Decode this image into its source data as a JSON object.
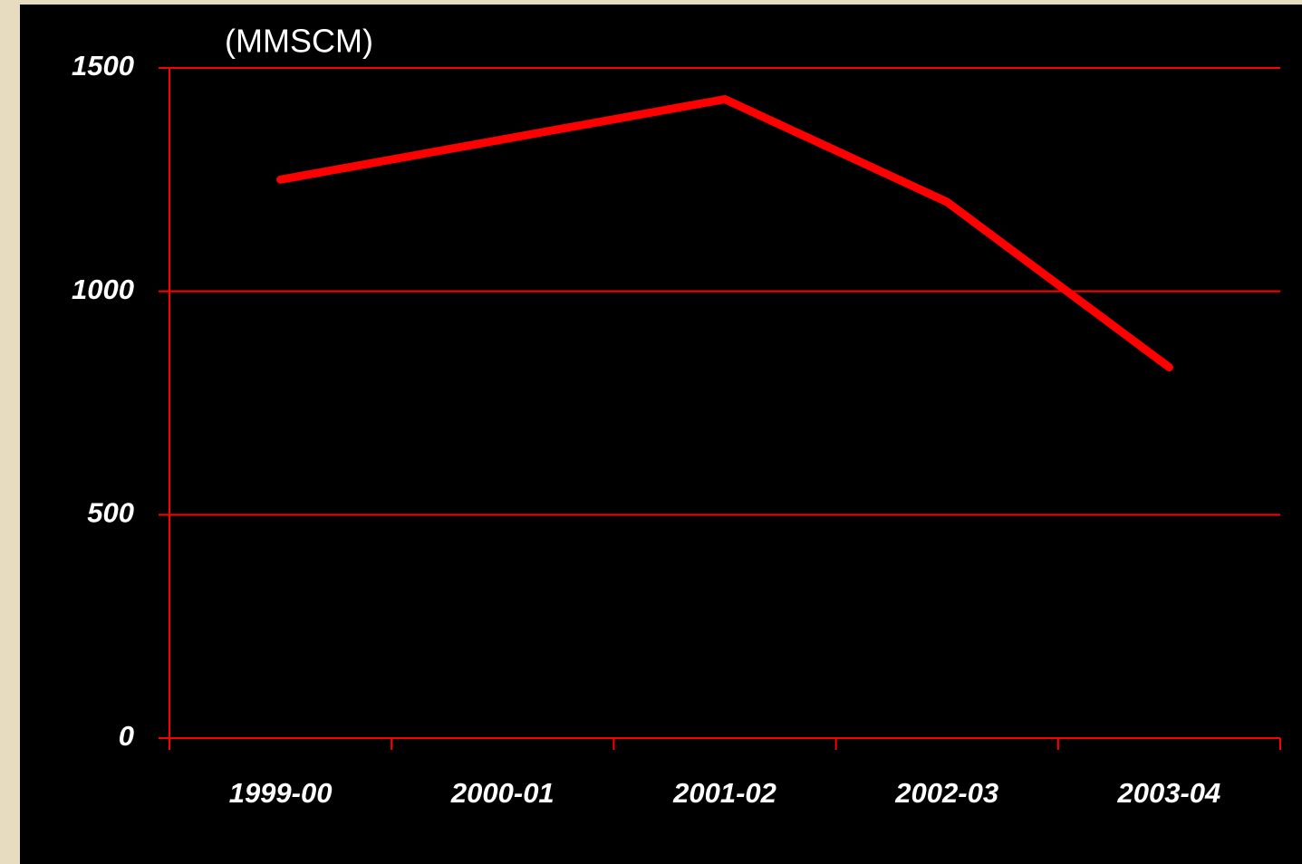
{
  "chart_data": {
    "type": "line",
    "y_label": "(MMSCM)",
    "categories": [
      "1999-00",
      "2000-01",
      "2001-02",
      "2002-03",
      "2003-04"
    ],
    "values": [
      1250,
      1340,
      1430,
      1200,
      830
    ],
    "color": "#ff0000",
    "ylim": [
      0,
      1500
    ],
    "yticks": [
      0,
      500,
      1000,
      1500
    ],
    "grid": true
  }
}
